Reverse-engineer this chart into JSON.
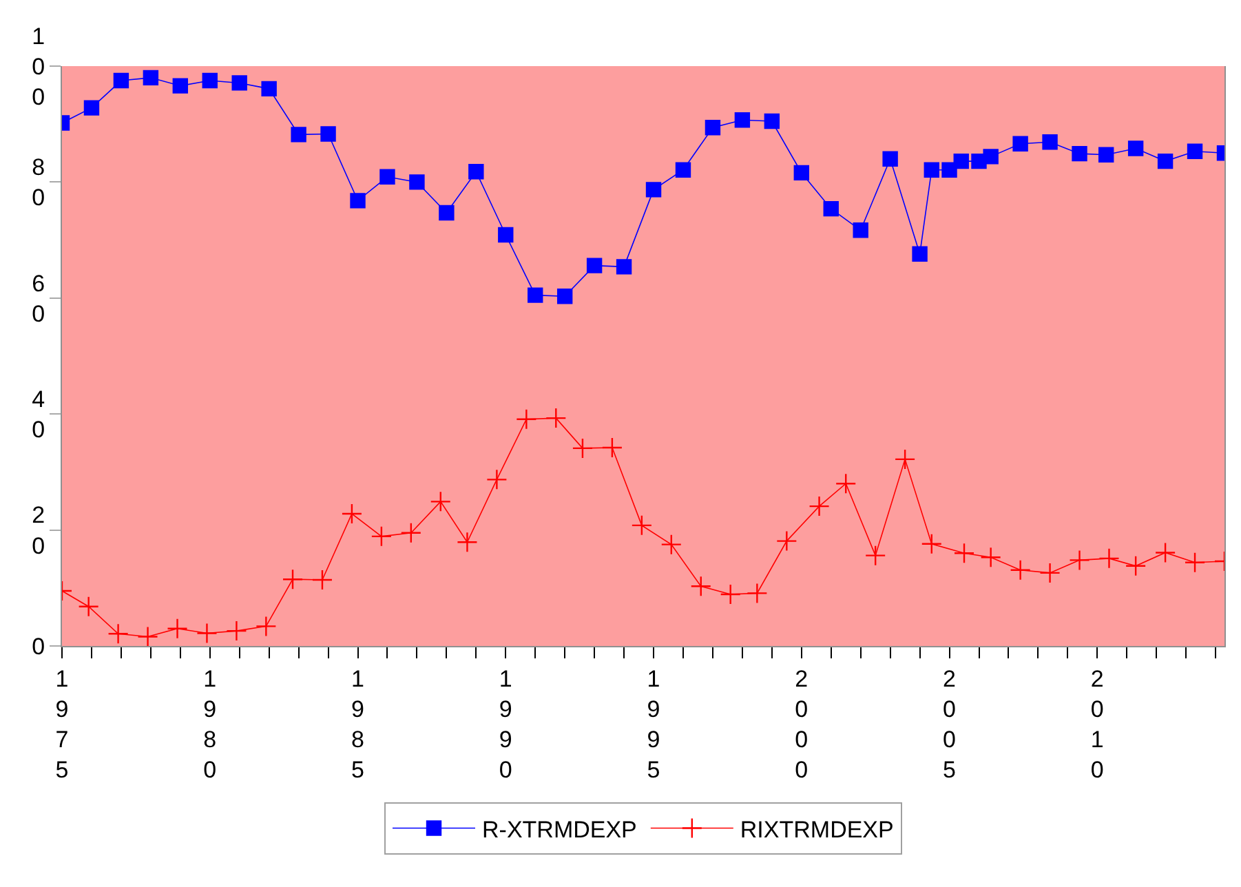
{
  "chart_data": {
    "type": "line",
    "xlim": [
      1975,
      2014.3
    ],
    "xticks": [
      {
        "value": 1975,
        "label": "1975"
      },
      {
        "value": 1976,
        "label": null
      },
      {
        "value": 1977,
        "label": null
      },
      {
        "value": 1978,
        "label": null
      },
      {
        "value": 1979,
        "label": null
      },
      {
        "value": 1980,
        "label": "1980"
      },
      {
        "value": 1981,
        "label": null
      },
      {
        "value": 1982,
        "label": null
      },
      {
        "value": 1983,
        "label": null
      },
      {
        "value": 1984,
        "label": null
      },
      {
        "value": 1985,
        "label": "1985"
      },
      {
        "value": 1986,
        "label": null
      },
      {
        "value": 1987,
        "label": null
      },
      {
        "value": 1988,
        "label": null
      },
      {
        "value": 1989,
        "label": null
      },
      {
        "value": 1990,
        "label": "1990"
      },
      {
        "value": 1991,
        "label": null
      },
      {
        "value": 1992,
        "label": null
      },
      {
        "value": 1993,
        "label": null
      },
      {
        "value": 1994,
        "label": null
      },
      {
        "value": 1995,
        "label": "1995"
      },
      {
        "value": 1996,
        "label": null
      },
      {
        "value": 1997,
        "label": null
      },
      {
        "value": 1998,
        "label": null
      },
      {
        "value": 1999,
        "label": null
      },
      {
        "value": 2000,
        "label": "2000"
      },
      {
        "value": 2001,
        "label": null
      },
      {
        "value": 2002,
        "label": null
      },
      {
        "value": 2003,
        "label": null
      },
      {
        "value": 2004,
        "label": null
      },
      {
        "value": 2005,
        "label": "2005"
      },
      {
        "value": 2006,
        "label": null
      },
      {
        "value": 2007,
        "label": null
      },
      {
        "value": 2008,
        "label": null
      },
      {
        "value": 2009,
        "label": null
      },
      {
        "value": 2010,
        "label": "2010"
      },
      {
        "value": 2011,
        "label": null
      },
      {
        "value": 2012,
        "label": null
      },
      {
        "value": 2013,
        "label": null
      },
      {
        "value": 2014,
        "label": null
      }
    ],
    "ylim": [
      0,
      100
    ],
    "yticks": [
      0,
      20,
      40,
      60,
      80,
      100
    ],
    "grid": false,
    "legend": "bottom",
    "line_style": "solid",
    "series": [
      {
        "name": "R-XTRMDEXP",
        "color": "#0000ff",
        "marker": "square",
        "x": [
          1975,
          1976,
          1977,
          1978,
          1979,
          1980,
          1981,
          1982,
          1983,
          1984,
          1985,
          1986,
          1987,
          1988,
          1989,
          1990,
          1991,
          1992,
          1993,
          1994,
          1995,
          1996,
          1997,
          1998,
          1999,
          2000,
          2001,
          2002,
          2003,
          2004,
          2004.4,
          2005.0,
          2005.4,
          2006.0,
          2006.4,
          2007.4,
          2008.4,
          2009.4,
          2010.3,
          2011.3,
          2012.3,
          2013.3,
          2014.3
        ],
        "values": [
          90.2,
          92.8,
          97.5,
          98.0,
          96.6,
          97.5,
          97.1,
          96.1,
          88.2,
          88.3,
          76.8,
          80.9,
          80.0,
          74.7,
          81.8,
          70.9,
          60.5,
          60.3,
          65.6,
          65.4,
          78.7,
          82.1,
          89.4,
          90.7,
          90.5,
          81.6,
          75.4,
          71.7,
          84.0,
          67.6,
          82.1,
          82.1,
          83.6,
          83.6,
          84.4,
          86.6,
          86.9,
          84.9,
          84.7,
          85.8,
          83.6,
          85.3,
          85.0
        ]
      },
      {
        "name": "RIXTRMDEXP",
        "color": "#ff0000",
        "marker": "cross",
        "x": [
          1975,
          1975.9,
          1976.9,
          1977.9,
          1978.9,
          1979.9,
          1980.9,
          1981.9,
          1982.8,
          1983.8,
          1984.8,
          1985.8,
          1986.8,
          1987.8,
          1988.7,
          1989.7,
          1990.7,
          1991.7,
          1992.6,
          1993.6,
          1994.6,
          1995.6,
          1996.6,
          1997.6,
          1998.5,
          1999.5,
          2000.6,
          2001.5,
          2002.5,
          2003.5,
          2004.4,
          2005.5,
          2006.4,
          2007.4,
          2008.4,
          2009.4,
          2010.4,
          2011.3,
          2012.3,
          2013.3,
          2014.3
        ],
        "values": [
          9.5,
          6.8,
          2.1,
          1.6,
          3.0,
          2.2,
          2.6,
          3.4,
          11.5,
          11.4,
          22.8,
          18.9,
          19.5,
          24.9,
          17.9,
          28.7,
          39.1,
          39.3,
          34.1,
          34.2,
          20.8,
          17.5,
          10.3,
          8.9,
          9.1,
          18.1,
          24.1,
          28.0,
          15.6,
          32.2,
          17.6,
          16.0,
          15.3,
          13.1,
          12.6,
          14.8,
          15.1,
          13.8,
          16.1,
          14.4,
          14.6
        ]
      }
    ]
  }
}
